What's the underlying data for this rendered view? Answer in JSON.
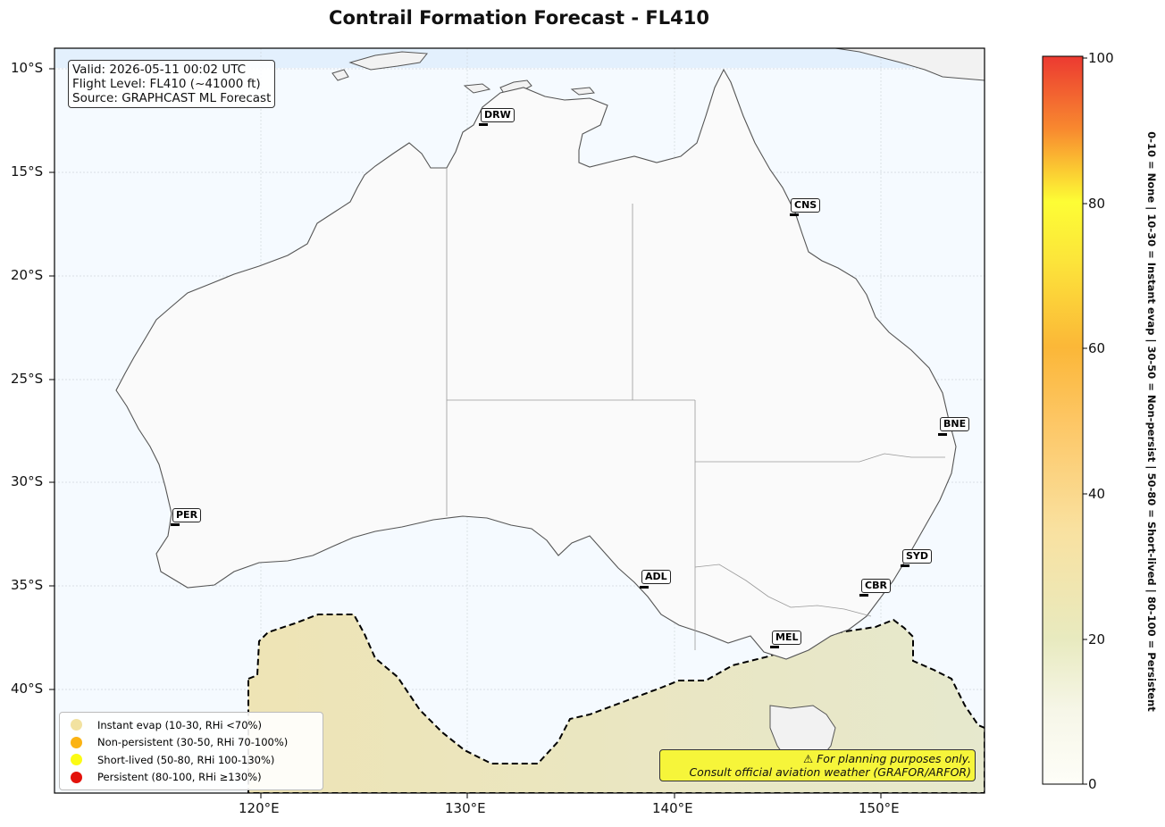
{
  "title": "Contrail Formation Forecast - FL410",
  "info": {
    "valid": "Valid: 2026-05-11 00:02 UTC",
    "flight_level": "Flight Level: FL410 (~41000 ft)",
    "source": "Source: GRAPHCAST ML Forecast"
  },
  "lat_labels": [
    "10°S",
    "15°S",
    "20°S",
    "25°S",
    "30°S",
    "35°S",
    "40°S"
  ],
  "lon_labels": [
    "120°E",
    "130°E",
    "140°E",
    "150°E"
  ],
  "airports": [
    {
      "code": "DRW"
    },
    {
      "code": "CNS"
    },
    {
      "code": "BNE"
    },
    {
      "code": "PER"
    },
    {
      "code": "SYD"
    },
    {
      "code": "ADL"
    },
    {
      "code": "CBR"
    },
    {
      "code": "MEL"
    }
  ],
  "legend": [
    {
      "label": "Instant evap (10-30, RHi <70%)",
      "color": "#f2e2a0"
    },
    {
      "label": "Non-persistent (30-50, RHi 70-100%)",
      "color": "#fbb313"
    },
    {
      "label": "Short-lived (50-80, RHi 100-130%)",
      "color": "#fbfb14"
    },
    {
      "label": "Persistent (80-100, RHi ≥130%)",
      "color": "#e3120b"
    }
  ],
  "warning": {
    "line1": "⚠ For planning purposes only.",
    "line2": "Consult official aviation weather (GRAFOR/ARFOR)"
  },
  "colorbar": {
    "ticks": [
      "100",
      "80",
      "60",
      "40",
      "20",
      "0"
    ],
    "side_label": "0-10 = None  |  10-30 = Instant evap  |  30-50 = Non-persist  |  50-80 = Short-lived  |  80-100 = Persistent"
  }
}
